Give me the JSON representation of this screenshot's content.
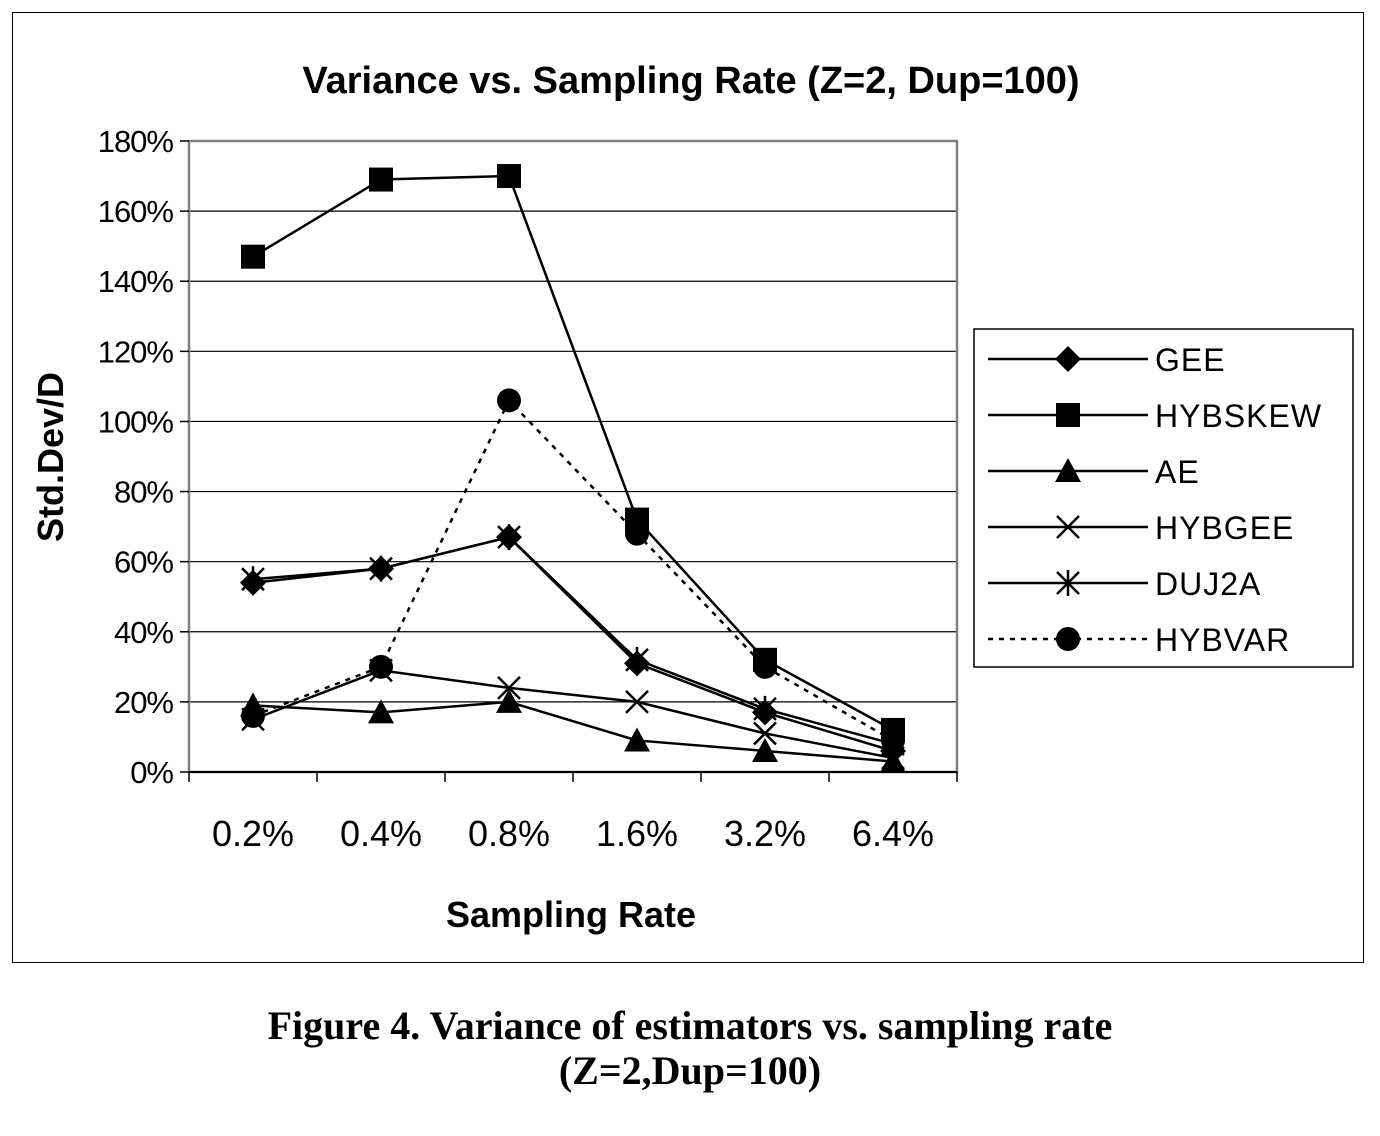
{
  "chart_data": {
    "type": "line",
    "title": "Variance vs. Sampling Rate (Z=2, Dup=100)",
    "xlabel": "Sampling Rate",
    "ylabel": "Std.Dev/D",
    "categories": [
      "0.2%",
      "0.4%",
      "0.8%",
      "1.6%",
      "3.2%",
      "6.4%"
    ],
    "ylim": [
      0,
      180
    ],
    "yticks": [
      "0%",
      "20%",
      "40%",
      "60%",
      "80%",
      "100%",
      "120%",
      "140%",
      "160%",
      "180%"
    ],
    "grid": "horizontal",
    "legend_position": "right",
    "series": [
      {
        "name": "GEE",
        "marker": "diamond",
        "dash": "solid",
        "values": [
          54,
          58,
          67,
          31,
          17,
          6
        ]
      },
      {
        "name": "HYBSKEW",
        "marker": "square",
        "dash": "solid",
        "values": [
          147,
          169,
          170,
          72,
          32,
          12
        ]
      },
      {
        "name": "AE",
        "marker": "triangle",
        "dash": "solid",
        "values": [
          19,
          17,
          20,
          9,
          6,
          3
        ]
      },
      {
        "name": "HYBGEE",
        "marker": "x",
        "dash": "solid",
        "values": [
          15,
          29,
          24,
          20,
          11,
          4
        ]
      },
      {
        "name": "DUJ2A",
        "marker": "asterisk",
        "dash": "solid",
        "values": [
          55,
          58,
          67,
          32,
          18,
          8
        ]
      },
      {
        "name": "HYBVAR",
        "marker": "circle",
        "dash": "dotted",
        "values": [
          16,
          30,
          106,
          68,
          30,
          9
        ]
      }
    ]
  },
  "caption": {
    "line1": "Figure 4. Variance of estimators vs. sampling rate",
    "line2": "(Z=2,Dup=100)"
  }
}
